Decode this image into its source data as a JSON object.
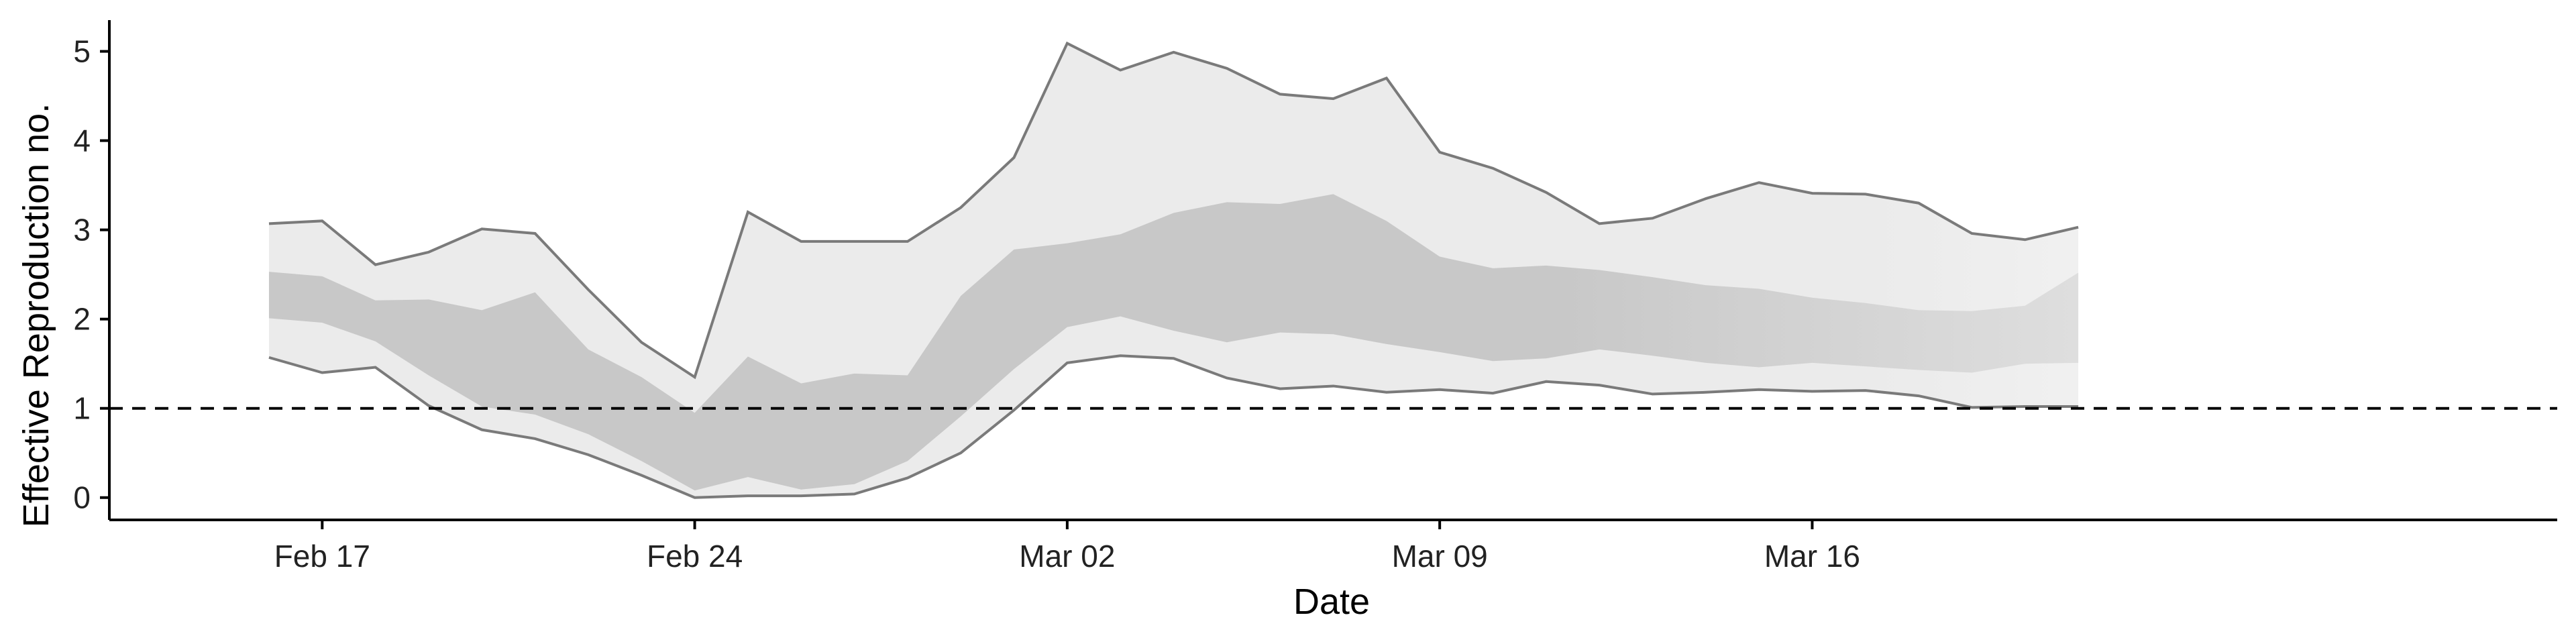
{
  "chart_data": {
    "type": "area",
    "title": "",
    "xlabel": "Date",
    "ylabel": "Effective Reproduction no.",
    "ylim": [
      -0.25,
      5.35
    ],
    "xlim": [
      "2020-02-13",
      "2020-03-30"
    ],
    "x_ticks": [
      {
        "date": "2020-02-17",
        "label": "Feb 17"
      },
      {
        "date": "2020-02-24",
        "label": "Feb 24"
      },
      {
        "date": "2020-03-02",
        "label": "Mar 02"
      },
      {
        "date": "2020-03-09",
        "label": "Mar 09"
      },
      {
        "date": "2020-03-16",
        "label": "Mar 16"
      }
    ],
    "y_ticks": [
      0,
      1,
      2,
      3,
      4,
      5
    ],
    "reference_line": {
      "y": 1,
      "style": "dashed"
    },
    "grid": false,
    "band_colors": {
      "outer": "#ebebeb",
      "inner": "#c8c8c8",
      "outer_fade": "#fafafa",
      "inner_fade": "#eeeeee",
      "bound_line": "#7a7a7a"
    },
    "x": [
      "2020-02-16",
      "2020-02-17",
      "2020-02-18",
      "2020-02-19",
      "2020-02-20",
      "2020-02-21",
      "2020-02-22",
      "2020-02-23",
      "2020-02-24",
      "2020-02-25",
      "2020-02-26",
      "2020-02-27",
      "2020-02-28",
      "2020-02-29",
      "2020-03-01",
      "2020-03-02",
      "2020-03-03",
      "2020-03-04",
      "2020-03-05",
      "2020-03-06",
      "2020-03-07",
      "2020-03-08",
      "2020-03-09",
      "2020-03-10",
      "2020-03-11",
      "2020-03-12",
      "2020-03-13",
      "2020-03-14",
      "2020-03-15",
      "2020-03-16",
      "2020-03-17",
      "2020-03-18",
      "2020-03-19",
      "2020-03-20",
      "2020-03-21"
    ],
    "outer_upper": [
      3.07,
      3.1,
      2.61,
      2.75,
      3.01,
      2.96,
      2.33,
      1.74,
      1.35,
      3.2,
      2.87,
      2.87,
      2.87,
      3.25,
      3.81,
      5.09,
      4.79,
      4.99,
      4.81,
      4.52,
      4.47,
      4.7,
      3.87,
      3.69,
      3.42,
      3.07,
      3.13,
      3.35,
      3.53,
      3.41,
      3.4,
      3.3,
      2.96,
      2.89,
      3.03
    ],
    "inner_upper": [
      2.53,
      2.48,
      2.21,
      2.22,
      2.1,
      2.3,
      1.66,
      1.35,
      0.95,
      1.58,
      1.28,
      1.39,
      1.37,
      2.26,
      2.78,
      2.85,
      2.95,
      3.19,
      3.31,
      3.29,
      3.4,
      3.1,
      2.7,
      2.57,
      2.6,
      2.55,
      2.47,
      2.38,
      2.34,
      2.24,
      2.18,
      2.1,
      2.09,
      2.15,
      2.52
    ],
    "inner_lower": [
      2.01,
      1.96,
      1.75,
      1.37,
      1.02,
      0.93,
      0.71,
      0.41,
      0.08,
      0.23,
      0.09,
      0.15,
      0.41,
      0.91,
      1.44,
      1.91,
      2.03,
      1.87,
      1.74,
      1.85,
      1.83,
      1.72,
      1.63,
      1.53,
      1.56,
      1.66,
      1.59,
      1.51,
      1.46,
      1.51,
      1.47,
      1.43,
      1.4,
      1.5,
      1.51
    ],
    "outer_lower": [
      1.57,
      1.4,
      1.46,
      1.03,
      0.76,
      0.66,
      0.48,
      0.25,
      0.0,
      0.02,
      0.02,
      0.04,
      0.22,
      0.5,
      0.98,
      1.51,
      1.59,
      1.56,
      1.34,
      1.22,
      1.25,
      1.18,
      1.21,
      1.17,
      1.3,
      1.26,
      1.16,
      1.18,
      1.21,
      1.19,
      1.2,
      1.14,
      1.01,
      1.02,
      1.02
    ]
  }
}
